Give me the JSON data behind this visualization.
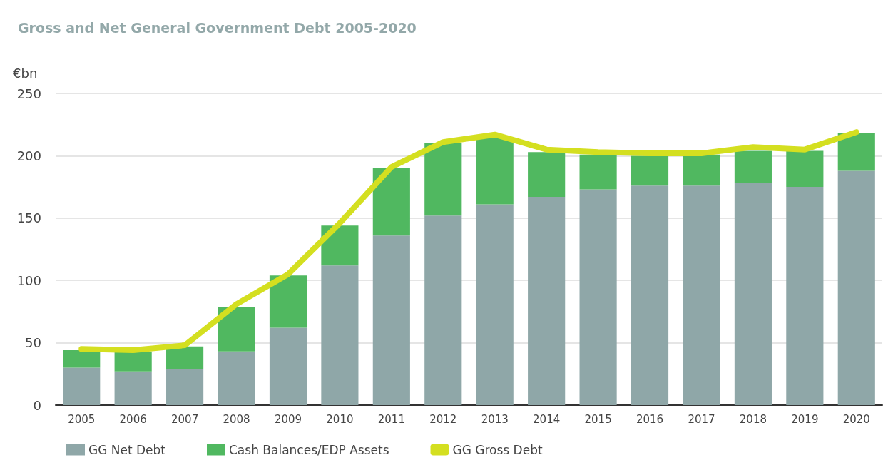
{
  "chart_data": {
    "type": "bar",
    "title": "Gross and Net General Government Debt 2005-2020",
    "ylabel": "€bn",
    "categories": [
      "2005",
      "2006",
      "2007",
      "2008",
      "2009",
      "2010",
      "2011",
      "2012",
      "2013",
      "2014",
      "2015",
      "2016",
      "2017",
      "2018",
      "2019",
      "2020"
    ],
    "stacked": true,
    "series": [
      {
        "name": "GG Net Debt",
        "color": "#8fa7a8",
        "values": [
          30,
          27,
          29,
          43,
          62,
          112,
          136,
          152,
          161,
          167,
          173,
          176,
          176,
          178,
          175,
          188
        ]
      },
      {
        "name": "Cash Balances/EDP Assets",
        "color": "#50b860",
        "values": [
          14,
          16,
          18,
          36,
          42,
          32,
          54,
          58,
          54,
          36,
          28,
          24,
          25,
          26,
          29,
          30
        ]
      },
      {
        "name": "GG Gross Debt",
        "type": "line",
        "color": "#d4df20",
        "values": [
          45,
          44,
          48,
          81,
          105,
          146,
          191,
          211,
          217,
          205,
          203,
          202,
          202,
          207,
          205,
          219
        ]
      }
    ],
    "ylim": [
      0,
      250
    ],
    "yticks": [
      0,
      50,
      100,
      150,
      200,
      250
    ],
    "grid": "y",
    "legend": "bottom",
    "line_style": "solid"
  }
}
